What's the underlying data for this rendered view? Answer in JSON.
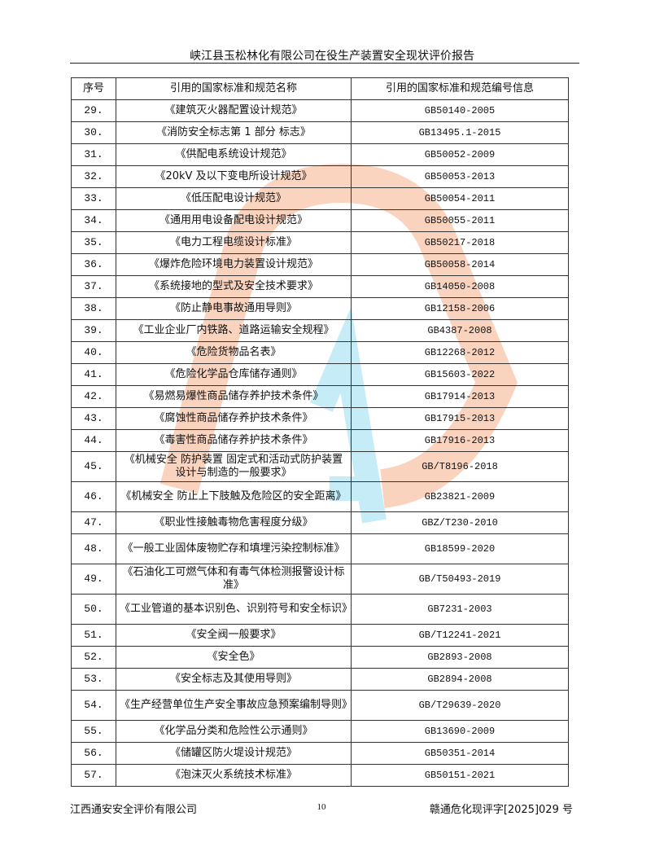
{
  "header": {
    "title": "峡江县玉松林化有限公司在役生产装置安全现状评价报告"
  },
  "table": {
    "columns": [
      "序号",
      "引用的国家标准和规范名称",
      "引用的国家标准和规范编号信息"
    ],
    "rows": [
      {
        "no": "29.",
        "name": "《建筑灭火器配置设计规范》",
        "code": "GB50140-2005"
      },
      {
        "no": "30.",
        "name": "《消防安全标志第 1 部分  标志》",
        "code": "GB13495.1-2015"
      },
      {
        "no": "31.",
        "name": "《供配电系统设计规范》",
        "code": "GB50052-2009"
      },
      {
        "no": "32.",
        "name": "《20kV 及以下变电所设计规范》",
        "code": "GB50053-2013"
      },
      {
        "no": "33.",
        "name": "《低压配电设计规范》",
        "code": "GB50054-2011"
      },
      {
        "no": "34.",
        "name": "《通用用电设备配电设计规范》",
        "code": "GB50055-2011"
      },
      {
        "no": "35.",
        "name": "《电力工程电缆设计标准》",
        "code": "GB50217-2018"
      },
      {
        "no": "36.",
        "name": "《爆炸危险环境电力装置设计规范》",
        "code": "GB50058-2014"
      },
      {
        "no": "37.",
        "name": "《系统接地的型式及安全技术要求》",
        "code": "GB14050-2008"
      },
      {
        "no": "38.",
        "name": "《防止静电事故通用导则》",
        "code": "GB12158-2006"
      },
      {
        "no": "39.",
        "name": "《工业企业厂内铁路、道路运输安全规程》",
        "code": "GB4387-2008"
      },
      {
        "no": "40.",
        "name": "《危险货物品名表》",
        "code": "GB12268-2012"
      },
      {
        "no": "41.",
        "name": "《危险化学品仓库储存通则》",
        "code": "GB15603-2022"
      },
      {
        "no": "42.",
        "name": "《易燃易爆性商品储存养护技术条件》",
        "code": "GB17914-2013"
      },
      {
        "no": "43.",
        "name": "《腐蚀性商品储存养护技术条件》",
        "code": "GB17915-2013"
      },
      {
        "no": "44.",
        "name": "《毒害性商品储存养护技术条件》",
        "code": "GB17916-2013"
      },
      {
        "no": "45.",
        "name": "《机械安全 防护装置 固定式和活动式防护装置设计与制造的一般要求》",
        "code": "GB/T8196-2018",
        "tall": true
      },
      {
        "no": "46.",
        "name": "《机械安全 防止上下肢触及危险区的安全距离》",
        "code": "GB23821-2009",
        "tall": true
      },
      {
        "no": "47.",
        "name": "《职业性接触毒物危害程度分级》",
        "code": "GBZ/T230-2010"
      },
      {
        "no": "48.",
        "name": "《一般工业固体废物贮存和填埋污染控制标准》",
        "code": "GB18599-2020",
        "tall": true
      },
      {
        "no": "49.",
        "name": "《石油化工可燃气体和有毒气体检测报警设计标准》",
        "code": "GB/T50493-2019",
        "tall": true
      },
      {
        "no": "50.",
        "name": "《工业管道的基本识别色、识别符号和安全标识》",
        "code": "GB7231-2003",
        "tall": true
      },
      {
        "no": "51.",
        "name": "《安全阀一般要求》",
        "code": "GB/T12241-2021"
      },
      {
        "no": "52.",
        "name": "《安全色》",
        "code": "GB2893-2008"
      },
      {
        "no": "53.",
        "name": "《安全标志及其使用导则》",
        "code": "GB2894-2008"
      },
      {
        "no": "54.",
        "name": "《生产经营单位生产安全事故应急预案编制导则》",
        "code": "GB/T29639-2020",
        "tall": true
      },
      {
        "no": "55.",
        "name": "《化学品分类和危险性公示通则》",
        "code": "GB13690-2009"
      },
      {
        "no": "56.",
        "name": "《储罐区防火堤设计规范》",
        "code": "GB50351-2014"
      },
      {
        "no": "57.",
        "name": "《泡沫灭火系统技术标准》",
        "code": "GB50151-2021"
      }
    ]
  },
  "watermark": {
    "stamp_text": "江西通安安全评价有限公司",
    "brand_text": "江西通安",
    "colors": {
      "orange": "#f4a070",
      "cyan": "#7fd6ee",
      "red": "#e8383a",
      "gray": "#aaaaaa"
    }
  },
  "footer": {
    "company": "江西通安安全评价有限公司",
    "page": "10",
    "doc_no": "赣通危化现评字[2025]029 号"
  }
}
